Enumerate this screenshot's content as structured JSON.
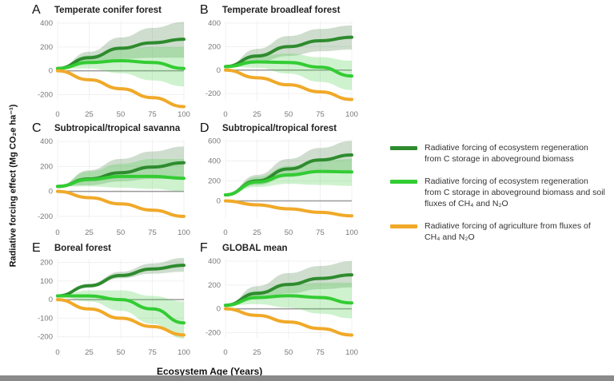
{
  "figure": {
    "ylabel": "Radiative forcing effect (Mg CO₂e ha⁻¹)",
    "xlabel": "Ecosystem Age (Years)"
  },
  "legend": [
    {
      "key": "abg",
      "label": "Radiative forcing of ecosystem regeneration from C storage in aboveground biomass",
      "color": "#2e8b2e"
    },
    {
      "key": "abg_soil",
      "label": "Radiative forcing of ecosystem regeneration from C storage in aboveground biomass and soil fluxes of CH₄ and N₂O",
      "color": "#33cc33"
    },
    {
      "key": "agri",
      "label": "Radiative forcing of agriculture from fluxes of CH₄ and N₂O",
      "color": "#f0a928"
    }
  ],
  "chart_data": [
    {
      "type": "line",
      "panel": "A",
      "title": "Temperate conifer forest",
      "x": [
        0,
        25,
        50,
        75,
        100
      ],
      "xlim": [
        0,
        100
      ],
      "ylim": [
        -250,
        420
      ],
      "yticks": [
        -200,
        0,
        200,
        400
      ],
      "xticks": [
        0,
        25,
        50,
        75,
        100
      ],
      "series": [
        {
          "key": "abg",
          "values": [
            20,
            110,
            190,
            235,
            265
          ],
          "lower": [
            20,
            60,
            100,
            110,
            110
          ],
          "upper": [
            20,
            160,
            280,
            360,
            410
          ]
        },
        {
          "key": "abg_soil",
          "values": [
            20,
            70,
            85,
            70,
            20
          ],
          "lower": [
            20,
            20,
            -20,
            -80,
            -130
          ],
          "upper": [
            20,
            130,
            180,
            200,
            200
          ]
        },
        {
          "key": "agri",
          "values": [
            0,
            -75,
            -150,
            -225,
            -300
          ]
        }
      ]
    },
    {
      "type": "line",
      "panel": "B",
      "title": "Temperate broadleaf forest",
      "x": [
        0,
        25,
        50,
        75,
        100
      ],
      "xlim": [
        0,
        100
      ],
      "ylim": [
        -260,
        420
      ],
      "yticks": [
        -200,
        0,
        200,
        400
      ],
      "xticks": [
        0,
        25,
        50,
        75,
        100
      ],
      "series": [
        {
          "key": "abg",
          "values": [
            30,
            120,
            200,
            250,
            280
          ],
          "lower": [
            30,
            70,
            120,
            160,
            175
          ],
          "upper": [
            30,
            180,
            290,
            350,
            380
          ]
        },
        {
          "key": "abg_soil",
          "values": [
            30,
            70,
            65,
            25,
            -50
          ],
          "lower": [
            30,
            20,
            -30,
            -100,
            -170
          ],
          "upper": [
            30,
            120,
            140,
            110,
            80
          ]
        },
        {
          "key": "agri",
          "values": [
            0,
            -65,
            -125,
            -185,
            -250
          ]
        }
      ]
    },
    {
      "type": "line",
      "panel": "C",
      "title": "Subtropical/tropical savanna",
      "x": [
        0,
        25,
        50,
        75,
        100
      ],
      "xlim": [
        0,
        100
      ],
      "ylim": [
        -220,
        420
      ],
      "yticks": [
        -200,
        0,
        200,
        400
      ],
      "xticks": [
        0,
        25,
        50,
        75,
        100
      ],
      "series": [
        {
          "key": "abg",
          "values": [
            40,
            100,
            150,
            195,
            230
          ],
          "lower": [
            40,
            50,
            80,
            100,
            100
          ],
          "upper": [
            40,
            170,
            260,
            320,
            360
          ]
        },
        {
          "key": "abg_soil",
          "values": [
            40,
            95,
            120,
            120,
            105
          ],
          "lower": [
            40,
            40,
            30,
            20,
            0
          ],
          "upper": [
            40,
            160,
            220,
            260,
            260
          ]
        },
        {
          "key": "agri",
          "values": [
            0,
            -50,
            -100,
            -150,
            -200
          ]
        }
      ]
    },
    {
      "type": "line",
      "panel": "D",
      "title": "Subtropical/tropical forest",
      "x": [
        0,
        25,
        50,
        75,
        100
      ],
      "xlim": [
        0,
        100
      ],
      "ylim": [
        -180,
        620
      ],
      "yticks": [
        0,
        200,
        400,
        600
      ],
      "xticks": [
        0,
        25,
        50,
        75,
        100
      ],
      "series": [
        {
          "key": "abg",
          "values": [
            60,
            200,
            320,
            410,
            460
          ],
          "lower": [
            60,
            160,
            240,
            290,
            290
          ],
          "upper": [
            60,
            260,
            420,
            530,
            600
          ]
        },
        {
          "key": "abg_soil",
          "values": [
            60,
            190,
            260,
            295,
            290
          ],
          "lower": [
            60,
            140,
            170,
            160,
            150
          ],
          "upper": [
            60,
            240,
            350,
            400,
            420
          ]
        },
        {
          "key": "agri",
          "values": [
            0,
            -40,
            -80,
            -115,
            -150
          ]
        }
      ]
    },
    {
      "type": "line",
      "panel": "E",
      "title": "Boreal forest",
      "x": [
        0,
        25,
        50,
        75,
        100
      ],
      "xlim": [
        0,
        100
      ],
      "ylim": [
        -210,
        220
      ],
      "yticks": [
        -200,
        -100,
        0,
        100,
        200
      ],
      "xticks": [
        0,
        25,
        50,
        75,
        100
      ],
      "series": [
        {
          "key": "abg",
          "values": [
            20,
            75,
            130,
            165,
            185
          ],
          "lower": [
            20,
            65,
            115,
            140,
            150
          ],
          "upper": [
            20,
            85,
            150,
            195,
            225
          ]
        },
        {
          "key": "abg_soil",
          "values": [
            20,
            20,
            0,
            -50,
            -125
          ],
          "lower": [
            20,
            -10,
            -60,
            -130,
            -210
          ],
          "upper": [
            20,
            50,
            50,
            20,
            -10
          ]
        },
        {
          "key": "agri",
          "values": [
            0,
            -50,
            -100,
            -145,
            -190
          ]
        }
      ]
    },
    {
      "type": "line",
      "panel": "F",
      "title": "GLOBAL mean",
      "x": [
        0,
        25,
        50,
        75,
        100
      ],
      "xlim": [
        0,
        100
      ],
      "ylim": [
        -250,
        420
      ],
      "yticks": [
        -200,
        0,
        200,
        400
      ],
      "xticks": [
        0,
        25,
        50,
        75,
        100
      ],
      "series": [
        {
          "key": "abg",
          "values": [
            30,
            130,
            205,
            255,
            285
          ],
          "lower": [
            30,
            80,
            130,
            165,
            180
          ],
          "upper": [
            30,
            190,
            300,
            360,
            400
          ]
        },
        {
          "key": "abg_soil",
          "values": [
            30,
            95,
            110,
            95,
            50
          ],
          "lower": [
            30,
            40,
            10,
            -40,
            -80
          ],
          "upper": [
            30,
            150,
            200,
            220,
            220
          ]
        },
        {
          "key": "agri",
          "values": [
            0,
            -55,
            -110,
            -165,
            -220
          ]
        }
      ]
    }
  ]
}
